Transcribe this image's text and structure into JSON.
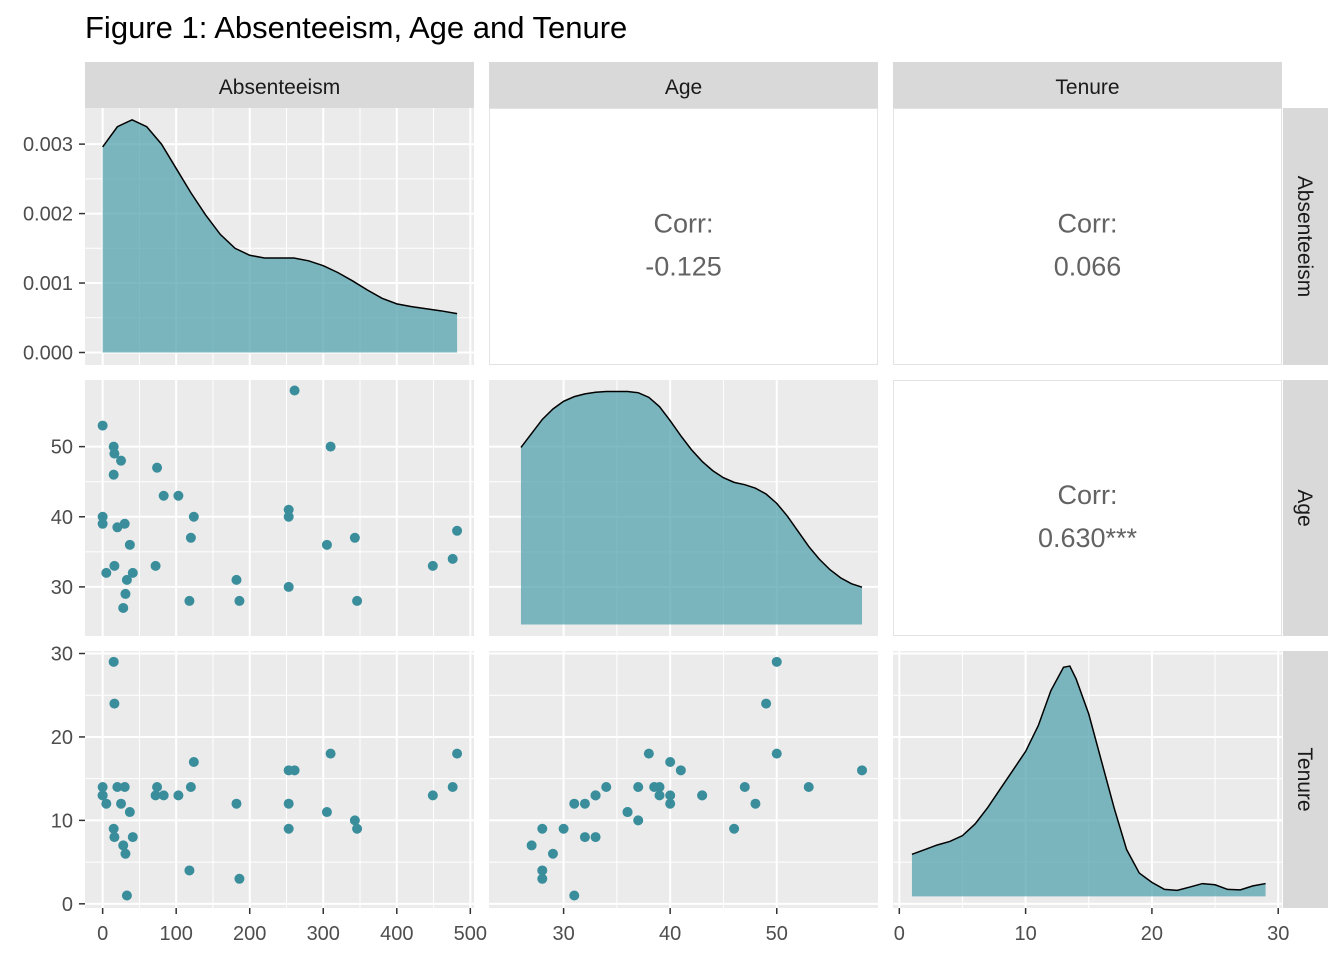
{
  "title": "Figure 1: Absenteeism, Age and Tenure",
  "colors": {
    "fill": "#4e9fac",
    "point": "#3a8e9c",
    "panel_bg": "#ebebeb",
    "strip_bg": "#d9d9d9",
    "grid": "#ffffff",
    "corr_text": "#636363"
  },
  "chart_data": {
    "type": "scatter",
    "matrix_type": "pairs",
    "variables": [
      "Absenteeism",
      "Age",
      "Tenure"
    ],
    "axes": {
      "Absenteeism": {
        "lim": [
          -24,
          505
        ],
        "ticks": [
          0,
          100,
          200,
          300,
          400,
          500
        ],
        "tick_labels": [
          "0",
          "100",
          "200",
          "300",
          "400",
          "500"
        ]
      },
      "Age": {
        "lim": [
          23,
          59.5
        ],
        "ticks": [
          30,
          40,
          50
        ],
        "tick_labels": [
          "30",
          "40",
          "50"
        ]
      },
      "Tenure": {
        "lim": [
          -0.5,
          30.3
        ],
        "ticks": [
          0,
          10,
          20,
          30
        ],
        "tick_labels": [
          "0",
          "10",
          "20",
          "30"
        ]
      },
      "density_y": {
        "lim": [
          -0.00018,
          0.00352
        ],
        "ticks": [
          0,
          0.001,
          0.002,
          0.003
        ],
        "tick_labels": [
          "0.000",
          "0.001",
          "0.002",
          "0.003"
        ]
      }
    },
    "correlations": [
      {
        "row": "Absenteeism",
        "col": "Age",
        "label": "Corr:",
        "value": "-0.125"
      },
      {
        "row": "Absenteeism",
        "col": "Tenure",
        "label": "Corr:",
        "value": "0.066"
      },
      {
        "row": "Age",
        "col": "Tenure",
        "label": "Corr:",
        "value": "0.630***"
      }
    ],
    "densities": {
      "Absenteeism": [
        [
          0,
          0.00296
        ],
        [
          20,
          0.00325
        ],
        [
          40,
          0.00335
        ],
        [
          60,
          0.00325
        ],
        [
          80,
          0.003
        ],
        [
          100,
          0.00265
        ],
        [
          120,
          0.0023
        ],
        [
          140,
          0.00198
        ],
        [
          160,
          0.0017
        ],
        [
          180,
          0.0015
        ],
        [
          200,
          0.0014
        ],
        [
          220,
          0.00136
        ],
        [
          240,
          0.00136
        ],
        [
          260,
          0.00136
        ],
        [
          280,
          0.00132
        ],
        [
          300,
          0.00125
        ],
        [
          320,
          0.00115
        ],
        [
          340,
          0.00103
        ],
        [
          360,
          0.0009
        ],
        [
          380,
          0.00078
        ],
        [
          400,
          0.0007
        ],
        [
          420,
          0.00066
        ],
        [
          440,
          0.00063
        ],
        [
          460,
          0.0006
        ],
        [
          482,
          0.00056
        ]
      ],
      "Age": [
        [
          26,
          0.76
        ],
        [
          27,
          0.82
        ],
        [
          28,
          0.88
        ],
        [
          29,
          0.925
        ],
        [
          30,
          0.958
        ],
        [
          31,
          0.978
        ],
        [
          32,
          0.99
        ],
        [
          33,
          0.997
        ],
        [
          34,
          1.0
        ],
        [
          35,
          1.0
        ],
        [
          36,
          1.0
        ],
        [
          37,
          0.995
        ],
        [
          38,
          0.975
        ],
        [
          39,
          0.935
        ],
        [
          40,
          0.875
        ],
        [
          41,
          0.81
        ],
        [
          42,
          0.75
        ],
        [
          43,
          0.7
        ],
        [
          44,
          0.66
        ],
        [
          45,
          0.63
        ],
        [
          46,
          0.61
        ],
        [
          47,
          0.6
        ],
        [
          48,
          0.585
        ],
        [
          49,
          0.56
        ],
        [
          50,
          0.52
        ],
        [
          51,
          0.465
        ],
        [
          52,
          0.4
        ],
        [
          53,
          0.335
        ],
        [
          54,
          0.28
        ],
        [
          55,
          0.235
        ],
        [
          56,
          0.2
        ],
        [
          57,
          0.175
        ],
        [
          58,
          0.16
        ]
      ],
      "Tenure": [
        [
          1,
          0.18
        ],
        [
          2,
          0.2
        ],
        [
          3,
          0.22
        ],
        [
          4,
          0.235
        ],
        [
          5,
          0.26
        ],
        [
          6,
          0.31
        ],
        [
          7,
          0.38
        ],
        [
          8,
          0.46
        ],
        [
          9,
          0.54
        ],
        [
          10,
          0.62
        ],
        [
          11,
          0.73
        ],
        [
          12,
          0.88
        ],
        [
          13,
          0.98
        ],
        [
          13.5,
          0.985
        ],
        [
          14,
          0.93
        ],
        [
          15,
          0.78
        ],
        [
          16,
          0.58
        ],
        [
          17,
          0.38
        ],
        [
          18,
          0.2
        ],
        [
          19,
          0.1
        ],
        [
          20,
          0.06
        ],
        [
          21,
          0.03
        ],
        [
          22,
          0.026
        ],
        [
          23,
          0.04
        ],
        [
          24,
          0.055
        ],
        [
          25,
          0.05
        ],
        [
          26,
          0.03
        ],
        [
          27,
          0.028
        ],
        [
          28,
          0.045
        ],
        [
          29,
          0.055
        ]
      ]
    },
    "points": [
      {
        "absenteeism": 0,
        "age": 53,
        "tenure": 14
      },
      {
        "absenteeism": 0,
        "age": 40,
        "tenure": 13
      },
      {
        "absenteeism": 0,
        "age": 39,
        "tenure": 13
      },
      {
        "absenteeism": 5,
        "age": 32,
        "tenure": 12
      },
      {
        "absenteeism": 15,
        "age": 50,
        "tenure": 29
      },
      {
        "absenteeism": 16,
        "age": 49,
        "tenure": 24
      },
      {
        "absenteeism": 15,
        "age": 46,
        "tenure": 9
      },
      {
        "absenteeism": 16,
        "age": 33,
        "tenure": 8
      },
      {
        "absenteeism": 20,
        "age": 38.5,
        "tenure": 14
      },
      {
        "absenteeism": 25,
        "age": 48,
        "tenure": 12
      },
      {
        "absenteeism": 28,
        "age": 27,
        "tenure": 7
      },
      {
        "absenteeism": 30,
        "age": 39,
        "tenure": 14
      },
      {
        "absenteeism": 31,
        "age": 29,
        "tenure": 6
      },
      {
        "absenteeism": 33,
        "age": 31,
        "tenure": 1
      },
      {
        "absenteeism": 37,
        "age": 36,
        "tenure": 11
      },
      {
        "absenteeism": 41,
        "age": 32,
        "tenure": 8
      },
      {
        "absenteeism": 72,
        "age": 33,
        "tenure": 13
      },
      {
        "absenteeism": 74,
        "age": 47,
        "tenure": 14
      },
      {
        "absenteeism": 83,
        "age": 43,
        "tenure": 13
      },
      {
        "absenteeism": 103,
        "age": 43,
        "tenure": 13
      },
      {
        "absenteeism": 118,
        "age": 28,
        "tenure": 4
      },
      {
        "absenteeism": 120,
        "age": 37,
        "tenure": 14
      },
      {
        "absenteeism": 124,
        "age": 40,
        "tenure": 17
      },
      {
        "absenteeism": 182,
        "age": 31,
        "tenure": 12
      },
      {
        "absenteeism": 186,
        "age": 28,
        "tenure": 3
      },
      {
        "absenteeism": 253,
        "age": 41,
        "tenure": 16
      },
      {
        "absenteeism": 253,
        "age": 40,
        "tenure": 12
      },
      {
        "absenteeism": 253,
        "age": 30,
        "tenure": 9
      },
      {
        "absenteeism": 261,
        "age": 58,
        "tenure": 16
      },
      {
        "absenteeism": 305,
        "age": 36,
        "tenure": 11
      },
      {
        "absenteeism": 310,
        "age": 50,
        "tenure": 18
      },
      {
        "absenteeism": 343,
        "age": 37,
        "tenure": 10
      },
      {
        "absenteeism": 346,
        "age": 28,
        "tenure": 9
      },
      {
        "absenteeism": 449,
        "age": 33,
        "tenure": 13
      },
      {
        "absenteeism": 476,
        "age": 34,
        "tenure": 14
      },
      {
        "absenteeism": 482,
        "age": 38,
        "tenure": 18
      }
    ]
  }
}
